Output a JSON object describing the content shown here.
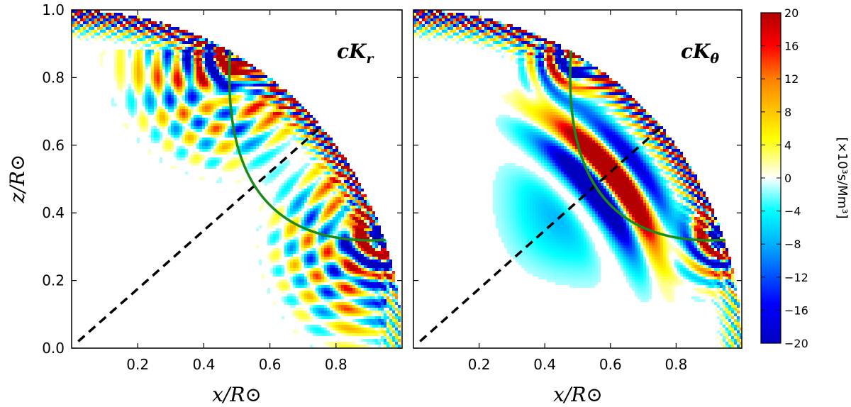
{
  "chart_data": {
    "type": "heatmap",
    "panels": [
      {
        "id": "left",
        "title": "cK_r",
        "title_main": "cK",
        "title_sub": "r",
        "xlabel": "x/R⊙",
        "ylabel": "z/R⊙",
        "xlim": [
          0.0,
          1.0
        ],
        "ylim": [
          0.0,
          1.0
        ],
        "xticks": [
          0.2,
          0.4,
          0.6,
          0.8
        ],
        "xtick_labels": [
          "0.2",
          "0.4",
          "0.6",
          "0.8"
        ],
        "yticks": [
          0.0,
          0.2,
          0.4,
          0.6,
          0.8,
          1.0
        ],
        "ytick_labels": [
          "0.0",
          "0.2",
          "0.4",
          "0.6",
          "0.8",
          "1.0"
        ],
        "ray_path": {
          "start": [
            0.48,
            0.88
          ],
          "end": [
            0.95,
            0.32
          ],
          "color": "#1a8a1a"
        },
        "dashed_line": {
          "start": [
            0.02,
            0.02
          ],
          "end": [
            0.75,
            0.65
          ]
        }
      },
      {
        "id": "right",
        "title": "cK_θ",
        "title_main": "cK",
        "title_sub": "θ",
        "xlabel": "x/R⊙",
        "ylabel": "",
        "xlim": [
          0.0,
          1.0
        ],
        "ylim": [
          0.0,
          1.0
        ],
        "xticks": [
          0.2,
          0.4,
          0.6,
          0.8
        ],
        "xtick_labels": [
          "0.2",
          "0.4",
          "0.6",
          "0.8"
        ],
        "yticks": [],
        "ytick_labels": [],
        "ray_path": {
          "start": [
            0.48,
            0.88
          ],
          "end": [
            0.95,
            0.32
          ],
          "color": "#1a8a1a"
        },
        "dashed_line": {
          "start": [
            0.02,
            0.02
          ],
          "end": [
            0.75,
            0.65
          ]
        }
      }
    ],
    "colorbar": {
      "label": "[×10³s/Mm³]",
      "range": [
        -20,
        20
      ],
      "ticks": [
        20,
        16,
        12,
        8,
        4,
        0,
        -4,
        -8,
        -12,
        -16,
        -20
      ],
      "tick_labels": [
        "20",
        "16",
        "12",
        "8",
        "4",
        "0",
        "−4",
        "−8",
        "−12",
        "−16",
        "−20"
      ],
      "colormap": [
        "#0000ff",
        "#00a0ff",
        "#00ffff",
        "#ffffff",
        "#ffff00",
        "#ff8000",
        "#ff0000"
      ]
    }
  }
}
